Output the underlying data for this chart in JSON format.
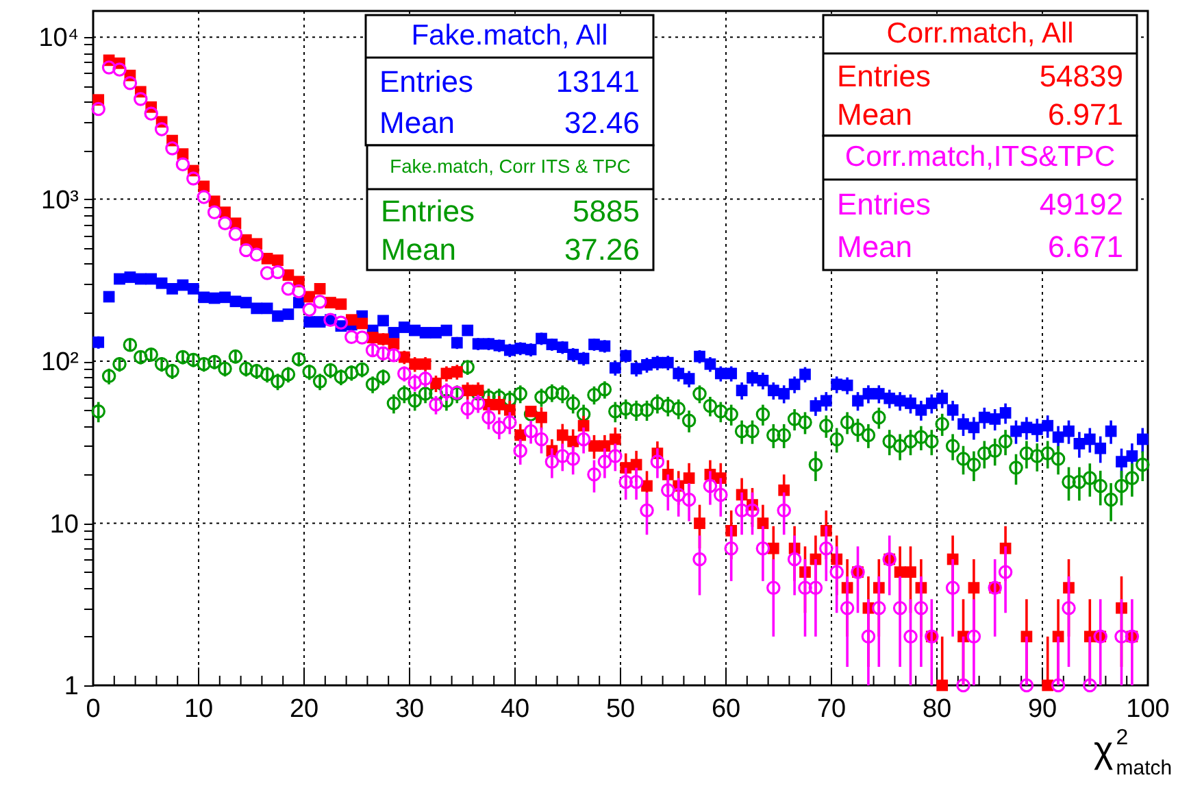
{
  "chart_data": {
    "type": "scatter",
    "xlabel": "χ$^{2}$$_{match}$",
    "log": "y",
    "grid": true,
    "xlim": [
      0,
      100
    ],
    "ylim": [
      1,
      14500
    ],
    "xticks": [
      0,
      {
        "value": 2,
        "label": null
      },
      {
        "value": 4,
        "label": null
      },
      {
        "value": 6,
        "label": null
      },
      {
        "value": 8,
        "label": null
      },
      10,
      {
        "value": 12,
        "label": null
      },
      {
        "value": 14,
        "label": null
      },
      {
        "value": 16,
        "label": null
      },
      {
        "value": 18,
        "label": null
      },
      20,
      {
        "value": 22,
        "label": null
      },
      {
        "value": 24,
        "label": null
      },
      {
        "value": 26,
        "label": null
      },
      {
        "value": 28,
        "label": null
      },
      30,
      {
        "value": 32,
        "label": null
      },
      {
        "value": 34,
        "label": null
      },
      {
        "value": 36,
        "label": null
      },
      {
        "value": 38,
        "label": null
      },
      40,
      {
        "value": 42,
        "label": null
      },
      {
        "value": 44,
        "label": null
      },
      {
        "value": 46,
        "label": null
      },
      {
        "value": 48,
        "label": null
      },
      50,
      {
        "value": 52,
        "label": null
      },
      {
        "value": 54,
        "label": null
      },
      {
        "value": 56,
        "label": null
      },
      {
        "value": 58,
        "label": null
      },
      60,
      {
        "value": 62,
        "label": null
      },
      {
        "value": 64,
        "label": null
      },
      {
        "value": 66,
        "label": null
      },
      {
        "value": 68,
        "label": null
      },
      70,
      {
        "value": 72,
        "label": null
      },
      {
        "value": 74,
        "label": null
      },
      {
        "value": 76,
        "label": null
      },
      {
        "value": 78,
        "label": null
      },
      80,
      {
        "value": 82,
        "label": null
      },
      {
        "value": 84,
        "label": null
      },
      {
        "value": 86,
        "label": null
      },
      {
        "value": 88,
        "label": null
      },
      90,
      {
        "value": 92,
        "label": null
      },
      {
        "value": 94,
        "label": null
      },
      {
        "value": 96,
        "label": null
      },
      {
        "value": 98,
        "label": null
      },
      100
    ],
    "yticks": [
      1,
      {
        "value": 2,
        "label": null
      },
      {
        "value": 3,
        "label": null
      },
      {
        "value": 4,
        "label": null
      },
      {
        "value": 5,
        "label": null
      },
      {
        "value": 6,
        "label": null
      },
      {
        "value": 7,
        "label": null
      },
      {
        "value": 8,
        "label": null
      },
      {
        "value": 9,
        "label": null
      },
      10,
      {
        "value": 20,
        "label": null
      },
      {
        "value": 30,
        "label": null
      },
      {
        "value": 40,
        "label": null
      },
      {
        "value": 50,
        "label": null
      },
      {
        "value": 60,
        "label": null
      },
      {
        "value": 70,
        "label": null
      },
      {
        "value": 80,
        "label": null
      },
      {
        "value": 90,
        "label": null
      },
      {
        "value": 100,
        "label": "10²"
      },
      {
        "value": 200,
        "label": null
      },
      {
        "value": 300,
        "label": null
      },
      {
        "value": 400,
        "label": null
      },
      {
        "value": 500,
        "label": null
      },
      {
        "value": 600,
        "label": null
      },
      {
        "value": 700,
        "label": null
      },
      {
        "value": 800,
        "label": null
      },
      {
        "value": 900,
        "label": null
      },
      {
        "value": 1000,
        "label": "10³"
      },
      {
        "value": 2000,
        "label": null
      },
      {
        "value": 3000,
        "label": null
      },
      {
        "value": 4000,
        "label": null
      },
      {
        "value": 5000,
        "label": null
      },
      {
        "value": 6000,
        "label": null
      },
      {
        "value": 7000,
        "label": null
      },
      {
        "value": 8000,
        "label": null
      },
      {
        "value": 9000,
        "label": null
      },
      {
        "value": 10000,
        "label": "10⁴"
      }
    ],
    "x": [
      0.5,
      1.5,
      2.5,
      3.5,
      4.5,
      5.5,
      6.5,
      7.5,
      8.5,
      9.5,
      10.5,
      11.5,
      12.5,
      13.5,
      14.5,
      15.5,
      16.5,
      17.5,
      18.5,
      19.5,
      20.5,
      21.5,
      22.5,
      23.5,
      24.5,
      25.5,
      26.5,
      27.5,
      28.5,
      29.5,
      30.5,
      31.5,
      32.5,
      33.5,
      34.5,
      35.5,
      36.5,
      37.5,
      38.5,
      39.5,
      40.5,
      41.5,
      42.5,
      43.5,
      44.5,
      45.5,
      46.5,
      47.5,
      48.5,
      49.5,
      50.5,
      51.5,
      52.5,
      53.5,
      54.5,
      55.5,
      56.5,
      57.5,
      58.5,
      59.5,
      60.5,
      61.5,
      62.5,
      63.5,
      64.5,
      65.5,
      66.5,
      67.5,
      68.5,
      69.5,
      70.5,
      71.5,
      72.5,
      73.5,
      74.5,
      75.5,
      76.5,
      77.5,
      78.5,
      79.5,
      80.5,
      81.5,
      82.5,
      83.5,
      84.5,
      85.5,
      86.5,
      87.5,
      88.5,
      89.5,
      90.5,
      91.5,
      92.5,
      93.5,
      94.5,
      95.5,
      96.5,
      97.5,
      98.5,
      99.5
    ],
    "annotations": [
      "Entries 13141",
      "Mean 32.46",
      "Entries 5885",
      "Mean 37.26",
      "Entries 54839",
      "Mean 6.971",
      "Entries 49192",
      "Mean 6.671"
    ],
    "series": [
      {
        "name": "Fake.match, All",
        "color": "#0000ff",
        "marker": "square",
        "values": [
          131,
          250,
          322,
          330,
          322,
          322,
          303,
          280,
          295,
          280,
          248,
          245,
          248,
          234,
          230,
          212,
          212,
          190,
          195,
          230,
          175,
          175,
          180,
          165,
          168,
          190,
          155,
          178,
          150,
          162,
          155,
          150,
          150,
          155,
          130,
          155,
          128,
          128,
          125,
          117,
          120,
          118,
          138,
          127,
          122,
          110,
          104,
          127,
          124,
          91,
          108,
          90,
          95,
          98,
          98,
          84,
          78,
          107,
          96,
          84,
          84,
          66,
          79,
          76,
          66,
          63,
          72,
          83,
          53,
          57,
          72,
          71,
          57,
          63,
          63,
          59,
          57,
          55,
          50,
          55,
          59,
          50,
          41,
          39,
          45,
          44,
          48,
          37,
          39,
          38,
          40,
          34,
          37,
          31,
          33,
          29,
          37,
          24,
          26,
          33
        ],
        "errors": [
          11.5,
          null,
          null,
          null,
          null,
          null,
          null,
          null,
          null,
          null,
          null,
          null,
          null,
          null,
          null,
          null,
          null,
          null,
          null,
          null,
          null,
          null,
          null,
          null,
          null,
          null,
          null,
          null,
          null,
          null,
          null,
          null,
          null,
          null,
          11,
          null,
          11,
          11,
          11,
          11,
          11,
          11,
          12,
          11,
          11,
          10.5,
          10,
          11,
          11,
          9.5,
          10,
          9.5,
          10,
          10,
          10,
          9,
          9,
          10,
          10,
          9,
          9,
          8,
          9,
          9,
          8,
          8,
          8.5,
          9,
          7,
          7.5,
          8.5,
          8.5,
          7.5,
          8,
          8,
          7.7,
          7.5,
          7.4,
          7,
          7.4,
          7.7,
          7,
          6.4,
          6.2,
          6.7,
          6.6,
          6.9,
          6.1,
          6.2,
          6.2,
          6.3,
          5.8,
          6.1,
          5.6,
          5.7,
          5.4,
          6.1,
          4.9,
          5.1,
          5.7
        ]
      },
      {
        "name": "Fake.match, Corr ITS & TPC",
        "color": "#009900",
        "marker": "circle",
        "values": [
          49,
          81,
          96,
          126,
          106,
          110,
          96,
          87,
          106,
          102,
          96,
          99,
          90,
          107,
          90,
          87,
          83,
          75,
          83,
          103,
          86,
          75,
          88,
          80,
          85,
          89,
          72,
          80,
          55,
          63,
          57,
          63,
          63,
          57,
          63,
          92,
          63,
          60,
          60,
          58,
          63,
          47,
          60,
          64,
          63,
          55,
          47,
          62,
          67,
          49,
          51,
          50,
          50,
          55,
          53,
          51,
          43,
          63,
          53,
          49,
          47,
          37,
          37,
          47,
          35,
          35,
          44,
          42,
          23,
          40,
          33,
          42,
          38,
          35,
          45,
          32,
          30,
          32,
          34,
          32,
          41,
          30,
          25,
          23,
          27,
          28,
          32,
          22,
          27,
          26,
          27,
          25,
          18,
          18,
          19,
          17,
          14,
          17,
          19,
          23
        ],
        "errors": [
          7,
          9,
          9.8,
          11,
          10.3,
          10.5,
          9.8,
          9.3,
          10.3,
          10.1,
          9.8,
          9.9,
          9.5,
          10.3,
          9.5,
          9.3,
          9.1,
          8.7,
          9.1,
          10.1,
          9.3,
          8.7,
          9.4,
          8.9,
          9.2,
          9.4,
          8.5,
          8.9,
          7.4,
          7.9,
          7.5,
          7.9,
          null,
          7.5,
          7.9,
          9.6,
          null,
          7.7,
          7.7,
          7.6,
          7.9,
          null,
          7.7,
          8,
          7.9,
          7.4,
          6.9,
          7.9,
          8.2,
          7,
          7.1,
          7.1,
          7.1,
          7.4,
          7.3,
          7.1,
          6.6,
          7.9,
          7.3,
          7,
          6.9,
          6.1,
          6.1,
          6.9,
          5.9,
          5.9,
          6.6,
          6.5,
          4.8,
          6.3,
          5.7,
          6.5,
          6.2,
          5.9,
          6.7,
          5.7,
          5.5,
          5.7,
          5.8,
          5.7,
          6.4,
          5.5,
          5,
          4.8,
          5.2,
          5.3,
          5.7,
          4.7,
          5.2,
          5.1,
          5.2,
          5,
          4.2,
          4.2,
          4.4,
          4.1,
          3.7,
          4.1,
          4.4,
          4.8
        ]
      },
      {
        "name": "Corr.match, All",
        "color": "#ff0000",
        "marker": "square",
        "values": [
          4100,
          7200,
          6900,
          5800,
          4600,
          3700,
          3000,
          2300,
          1900,
          1500,
          1200,
          970,
          830,
          710,
          560,
          530,
          430,
          420,
          340,
          310,
          250,
          280,
          230,
          225,
          180,
          171,
          140,
          137,
          128,
          106,
          96,
          96,
          73,
          84,
          86,
          66,
          66,
          54,
          54,
          50,
          35,
          49,
          45,
          28,
          35,
          32,
          40,
          30,
          30,
          33,
          22,
          23,
          17,
          27,
          20,
          17,
          19,
          10,
          20,
          19,
          9,
          15,
          13,
          10,
          7,
          16,
          7,
          5,
          6,
          9,
          6,
          4,
          5,
          3,
          4,
          6,
          5,
          5,
          4,
          2,
          1,
          6,
          2,
          4,
          null,
          4,
          7,
          null,
          2,
          null,
          1,
          2,
          4,
          null,
          2,
          2,
          null,
          3,
          2,
          null
        ],
        "errors": [
          null,
          null,
          null,
          null,
          null,
          null,
          null,
          null,
          null,
          null,
          null,
          null,
          null,
          null,
          null,
          null,
          null,
          null,
          null,
          null,
          null,
          null,
          null,
          null,
          null,
          null,
          12,
          12,
          11,
          10,
          10,
          10,
          8.5,
          9,
          9,
          8,
          8,
          7,
          7,
          7,
          6,
          null,
          7,
          5,
          6,
          6,
          6,
          5,
          5,
          6,
          5,
          5,
          4,
          5,
          4.5,
          4,
          4.5,
          3,
          4.5,
          4.5,
          3,
          4,
          3.5,
          3,
          2.6,
          4,
          2.6,
          2.2,
          2.4,
          3,
          2.4,
          2,
          null,
          1.7,
          2,
          null,
          2.2,
          2.2,
          2,
          null,
          [
            1,
            2
          ],
          2.4,
          [
            1,
            3.4
          ],
          2,
          null,
          null,
          2.6,
          null,
          [
            1,
            3.4
          ],
          null,
          [
            1,
            2
          ],
          [
            1,
            3.4
          ],
          2,
          null,
          [
            1,
            3.4
          ],
          null,
          null,
          1.7,
          null,
          null
        ]
      },
      {
        "name": "Corr.match,ITS&TPC",
        "color": "#ff00ff",
        "marker": "circle",
        "values": [
          3600,
          6500,
          6300,
          5200,
          4150,
          3370,
          2700,
          2060,
          1640,
          1340,
          1030,
          830,
          710,
          610,
          485,
          455,
          350,
          355,
          280,
          270,
          208,
          233,
          180,
          173,
          141,
          140,
          117,
          112,
          109,
          84,
          74,
          78,
          54,
          65,
          64,
          51,
          55,
          45,
          39,
          42,
          28,
          37,
          33,
          24,
          26,
          25,
          33,
          20,
          24,
          26,
          18,
          18,
          12,
          24,
          16,
          15,
          14,
          6,
          17,
          15,
          7,
          12,
          12,
          7,
          4,
          12,
          6,
          4,
          4,
          7,
          5,
          3,
          5,
          2,
          3,
          6,
          3,
          2,
          3,
          2,
          null,
          4,
          1,
          2,
          null,
          4,
          5,
          null,
          1,
          null,
          null,
          1,
          3,
          null,
          1,
          2,
          null,
          2,
          2,
          null
        ],
        "errors": [
          null,
          null,
          null,
          null,
          null,
          null,
          null,
          null,
          null,
          null,
          null,
          null,
          null,
          null,
          null,
          null,
          null,
          null,
          null,
          null,
          null,
          null,
          null,
          null,
          null,
          null,
          11,
          11,
          10,
          9,
          9,
          9,
          7,
          8,
          null,
          7,
          7,
          7,
          6,
          6.5,
          5,
          6,
          6,
          5,
          5,
          5,
          6,
          4.5,
          5,
          5,
          4,
          4,
          3.5,
          5,
          4,
          4,
          3.7,
          2.4,
          4,
          4,
          2.6,
          3.5,
          3.5,
          2.6,
          2,
          3.5,
          2.4,
          2,
          2,
          2.6,
          2.2,
          1.7,
          2.2,
          [
            1,
            3.4
          ],
          1.7,
          2.4,
          1.7,
          [
            1,
            3.4
          ],
          1.7,
          [
            1,
            3.4
          ],
          null,
          2,
          [
            1,
            2
          ],
          [
            1,
            3.4
          ],
          null,
          2,
          2.2,
          null,
          [
            1,
            2
          ],
          null,
          null,
          [
            1,
            2
          ],
          1.7,
          null,
          [
            1,
            2
          ],
          [
            1,
            3.4
          ],
          null,
          [
            1,
            3.4
          ],
          [
            1,
            3.4
          ],
          null
        ]
      }
    ]
  }
}
